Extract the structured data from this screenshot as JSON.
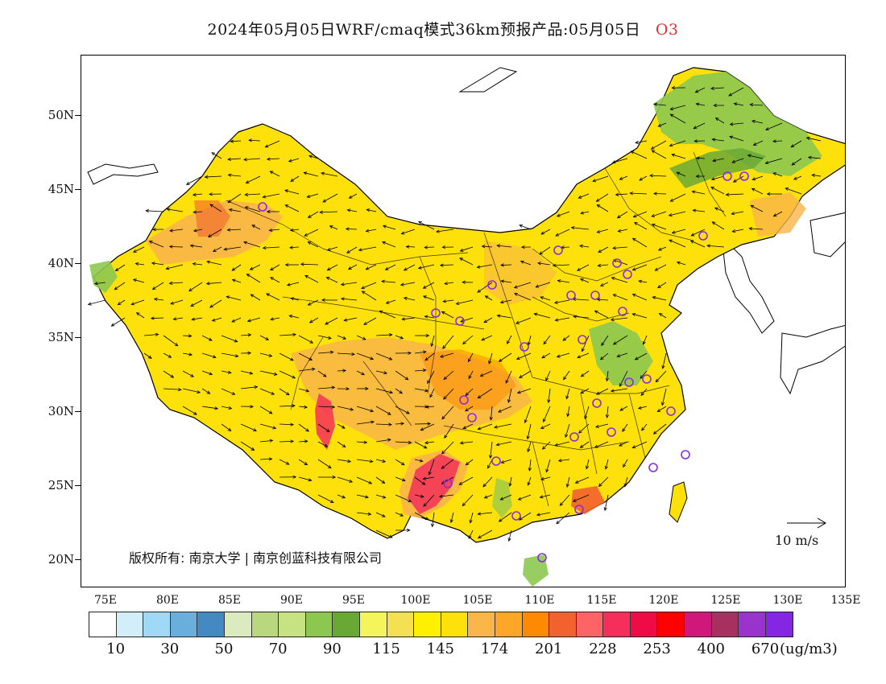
{
  "title": {
    "text": "2024年05月05日WRF/cmaq模式36km预报产品:05月05日",
    "species": "O3"
  },
  "axes": {
    "lat_labels": [
      "50N",
      "45N",
      "40N",
      "35N",
      "30N",
      "25N",
      "20N"
    ],
    "lon_labels": [
      "75E",
      "80E",
      "85E",
      "90E",
      "95E",
      "100E",
      "105E",
      "110E",
      "115E",
      "120E",
      "125E",
      "130E",
      "135E"
    ],
    "lon_range": [
      73.5,
      135
    ],
    "lat_range": [
      18,
      54
    ]
  },
  "copyright": "版权所有: 南京大学 | 南京创蓝科技有限公司",
  "wind_scale": {
    "label": "10  m/s"
  },
  "colorbar": {
    "unit": "(ug/m3)",
    "labels": [
      "10",
      "30",
      "50",
      "70",
      "90",
      "115",
      "145",
      "174",
      "201",
      "228",
      "253",
      "400",
      "670"
    ],
    "colors": [
      "#ffffff",
      "#d2eefa",
      "#a0d9f5",
      "#6aaedc",
      "#4489c2",
      "#dcebbf",
      "#b8d77e",
      "#c6e282",
      "#8cc850",
      "#6aa836",
      "#f4f55a",
      "#f5e053",
      "#fff000",
      "#fee10a",
      "#f9b548",
      "#fda628",
      "#fd8a02",
      "#f2622e",
      "#fe6466",
      "#f52f5a",
      "#ee0b46",
      "#ff0000",
      "#d0187a",
      "#a83060",
      "#9a33cc",
      "#8426e2"
    ]
  },
  "colors": {
    "species_text": "#e03030",
    "station_marker": "#8a2be2"
  },
  "stations_icon": "circle-station-icon",
  "wind_icon": "wind-vector-arrow-icon"
}
